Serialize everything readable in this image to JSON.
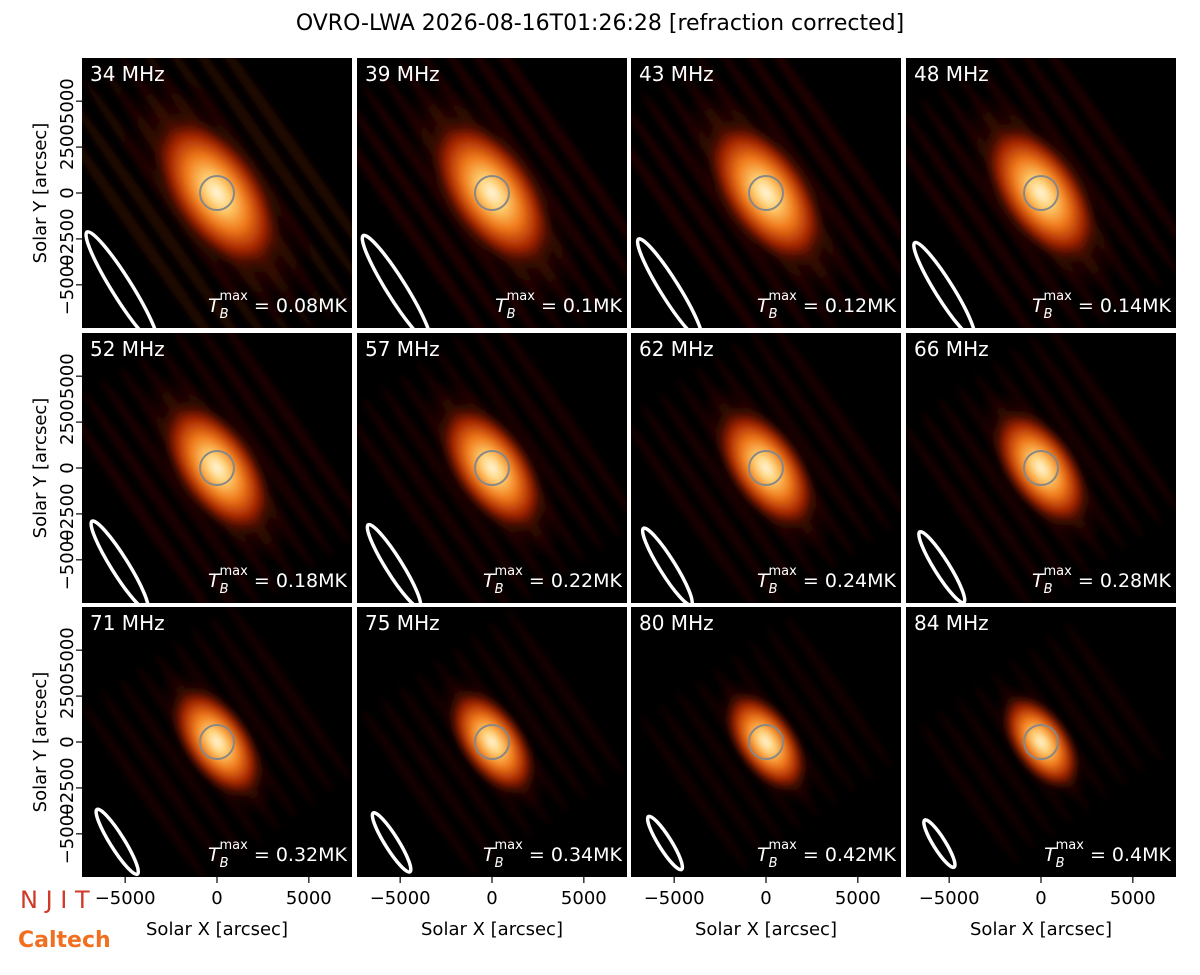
{
  "chart_data": {
    "type": "image-grid",
    "title": "OVRO-LWA 2026-08-16T01:26:28 [refraction corrected]",
    "xlabel": "Solar X [arcsec]",
    "ylabel": "Solar Y [arcsec]",
    "xlim": [
      -7350,
      7350
    ],
    "ylim": [
      -7350,
      7350
    ],
    "xticks": [
      {
        "value": -5000,
        "label": "−5000"
      },
      0,
      5000
    ],
    "yticks": [
      {
        "value": -5000,
        "label": "−5000"
      },
      {
        "value": -2500,
        "label": "−2500"
      },
      0,
      2500,
      5000
    ],
    "panels": [
      {
        "label": "34 MHz",
        "tb": {
          "symbol": "T",
          "sub": "B",
          "sup": "max",
          "text": " = 0.08MK"
        }
      },
      {
        "label": "39 MHz",
        "tb": {
          "symbol": "T",
          "sub": "B",
          "sup": "max",
          "text": " = 0.1MK"
        }
      },
      {
        "label": "43 MHz",
        "tb": {
          "symbol": "T",
          "sub": "B",
          "sup": "max",
          "text": " = 0.12MK"
        }
      },
      {
        "label": "48 MHz",
        "tb": {
          "symbol": "T",
          "sub": "B",
          "sup": "max",
          "text": " = 0.14MK"
        }
      },
      {
        "label": "52 MHz",
        "tb": {
          "symbol": "T",
          "sub": "B",
          "sup": "max",
          "text": " = 0.18MK"
        }
      },
      {
        "label": "57 MHz",
        "tb": {
          "symbol": "T",
          "sub": "B",
          "sup": "max",
          "text": " = 0.22MK"
        }
      },
      {
        "label": "62 MHz",
        "tb": {
          "symbol": "T",
          "sub": "B",
          "sup": "max",
          "text": " = 0.24MK"
        }
      },
      {
        "label": "66 MHz",
        "tb": {
          "symbol": "T",
          "sub": "B",
          "sup": "max",
          "text": " = 0.28MK"
        }
      },
      {
        "label": "71 MHz",
        "tb": {
          "symbol": "T",
          "sub": "B",
          "sup": "max",
          "text": " = 0.32MK"
        }
      },
      {
        "label": "75 MHz",
        "tb": {
          "symbol": "T",
          "sub": "B",
          "sup": "max",
          "text": " = 0.34MK"
        }
      },
      {
        "label": "80 MHz",
        "tb": {
          "symbol": "T",
          "sub": "B",
          "sup": "max",
          "text": " = 0.42MK"
        }
      },
      {
        "label": "84 MHz",
        "tb": {
          "symbol": "T",
          "sub": "B",
          "sup": "max",
          "text": " = 0.4MK"
        }
      }
    ],
    "logos": [
      "N J I T",
      "Caltech"
    ]
  }
}
